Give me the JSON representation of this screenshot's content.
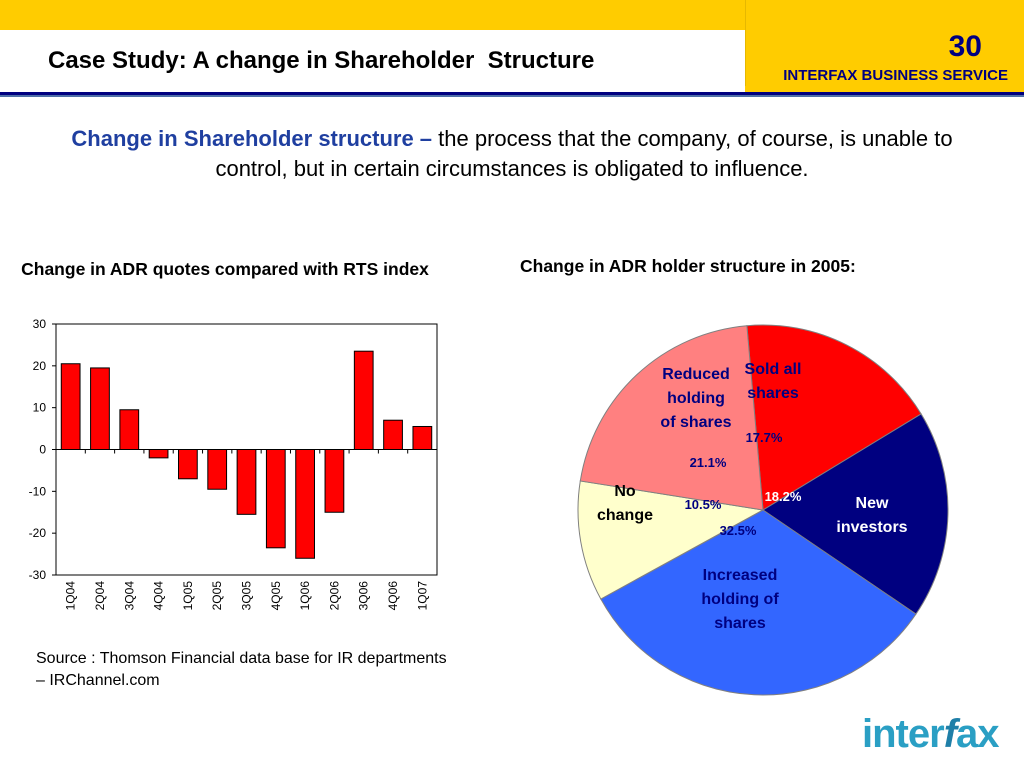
{
  "header": {
    "title": "Case Study: A change in Shareholder  Structure",
    "slide_number": "30",
    "brand": "INTERFAX BUSINESS SERVICE"
  },
  "intro": {
    "lead": "Change in Shareholder structure –",
    "text": " the process that the company, of course, is unable to control, but in certain circumstances is obligated to influence."
  },
  "colors": {
    "accent_yellow": "#ffcc00",
    "navy": "#000080",
    "bar_red": "#ff0000",
    "lead_blue": "#1f3fa0"
  },
  "chart_data": [
    {
      "type": "bar",
      "title": "Change in ADR quotes compared with RTS index",
      "categories": [
        "1Q04",
        "2Q04",
        "3Q04",
        "4Q04",
        "1Q05",
        "2Q05",
        "3Q05",
        "4Q05",
        "1Q06",
        "2Q06",
        "3Q06",
        "4Q06",
        "1Q07"
      ],
      "values": [
        20.5,
        19.5,
        9.5,
        -2,
        -7,
        -9.5,
        -15.5,
        -23.5,
        -26,
        -15,
        23.5,
        7,
        5.5
      ],
      "ylim": [
        -30,
        30
      ],
      "yticks": [
        30,
        20,
        10,
        0,
        -10,
        -20,
        -30
      ],
      "xlabel": "",
      "ylabel": "",
      "grid": false,
      "legend": false,
      "color": "#ff0000"
    },
    {
      "type": "pie",
      "title": "Change in ADR holder structure in 2005:",
      "slices": [
        {
          "label": "Sold all shares",
          "label_lines": [
            "Sold all",
            "shares"
          ],
          "value": 17.7,
          "value_label": "17.7%",
          "color": "#ff0000",
          "value_color": "#000080"
        },
        {
          "label": "New investors",
          "label_lines": [
            "New",
            "investors"
          ],
          "value": 18.2,
          "value_label": "18.2%",
          "color": "#000080",
          "value_color": "#ffffff"
        },
        {
          "label": "Increased holding of shares",
          "label_lines": [
            "Increased",
            "holding of",
            "shares"
          ],
          "value": 32.5,
          "value_label": "32.5%",
          "color": "#3366ff",
          "value_color": "#000080"
        },
        {
          "label": "No change",
          "label_lines": [
            "No",
            "change"
          ],
          "value": 10.5,
          "value_label": "10.5%",
          "color": "#ffffcc",
          "value_color": "#000080"
        },
        {
          "label": "Reduced holding of shares",
          "label_lines": [
            "Reduced",
            "holding",
            "of shares"
          ],
          "value": 21.1,
          "value_label": "21.1%",
          "color": "#ff8080",
          "value_color": "#000080"
        }
      ],
      "legend": false
    }
  ],
  "source": "Source : Thomson Financial data base for IR departments – IRChannel.com",
  "logo": {
    "part1": "inter",
    "part2": "f",
    "part3": "ax"
  }
}
